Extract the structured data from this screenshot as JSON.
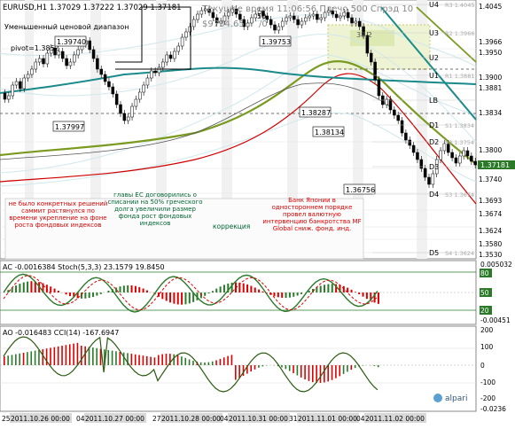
{
  "header": {
    "symbol_line": "EURUSD,H1  1.37029 1.37222 1.37029 1.37181",
    "server_line": "Текущее время 11:06:56 Плечо 500 Спрэд 10",
    "balance": "$9734.65",
    "balance_suffix": "/0",
    "narrow_range": "Уменьшенный ценовой диапазон",
    "pivot": "pivot=1.3852",
    "range_top_num": "50"
  },
  "levels": [
    {
      "label": "U4",
      "price": "R3 1.4045"
    },
    {
      "label": "U3",
      "price": "R2 1.3966"
    },
    {
      "label": "U2",
      "price": ""
    },
    {
      "label": "U1",
      "price": "R1 1.3881"
    },
    {
      "label": "LB",
      "price": ""
    },
    {
      "label": "D1",
      "price": "S1 1.3834"
    },
    {
      "label": "D2",
      "price": "S2 1.3754"
    },
    {
      "label": "D3",
      "price": ""
    },
    {
      "label": "D4",
      "price": "S3 1.3674"
    },
    {
      "label": "D5",
      "price": "S4 1.3624"
    }
  ],
  "main_axis": [
    "1.4045",
    "1.3966",
    "1.3950",
    "1.3900",
    "1.3881",
    "1.3834",
    "1.3800",
    "1.3740",
    "1.3693",
    "1.3674",
    "1.3624",
    "1.3580",
    "1.3530"
  ],
  "current_price": "1.37181",
  "price_boxes": [
    "1.39740",
    "1.37997",
    "1.39753",
    "1.38287",
    "1.38134",
    "1.36756"
  ],
  "range_value": "38.2",
  "annotations": [
    "не было конкретных решений саммит растянулся по времени укрепление  на фоне роста фондовых индексов",
    "главы ЕС договорились о списании на 50% греческого долга увеличили размер фонда рост фондовых индексов",
    "коррекция",
    "Банк Японии в одностороннем порядке провел валютную интервенцию банкротства MF Global сниж. фонд. инд."
  ],
  "ac_panel": {
    "title": "AC -0.0016384  Stoch(5,3,3) 23.1579 19.8450",
    "axis": [
      "0.005032",
      "80",
      "50",
      "20",
      "-0.00451"
    ]
  },
  "ao_panel": {
    "title": "AO -0.016483  CCI(14) -167.6947",
    "axis": [
      "200",
      "100",
      "0",
      "-100",
      "-200",
      "-0.0236"
    ],
    "logo": "alpari"
  },
  "time_axis": [
    "25",
    "2011.10.26 00:00",
    "04",
    "2011.10.27 00:00",
    "27",
    "2011.10.28 00:00",
    "04",
    "2011.10.31 00:00",
    "31",
    "2011.11.01 00:00",
    "04",
    "2011.11.02 00:00"
  ]
}
